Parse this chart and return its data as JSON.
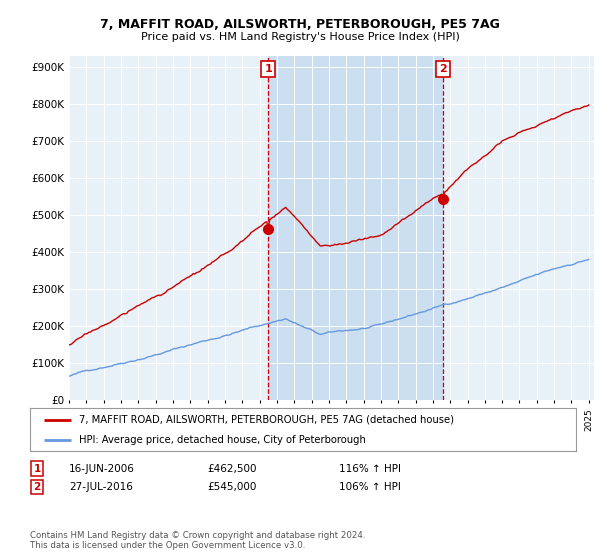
{
  "title": "7, MAFFIT ROAD, AILSWORTH, PETERBOROUGH, PE5 7AG",
  "subtitle": "Price paid vs. HM Land Registry's House Price Index (HPI)",
  "legend_line1": "7, MAFFIT ROAD, AILSWORTH, PETERBOROUGH, PE5 7AG (detached house)",
  "legend_line2": "HPI: Average price, detached house, City of Peterborough",
  "annotation1_date": "16-JUN-2006",
  "annotation1_price": 462500,
  "annotation1_pct": "116% ↑ HPI",
  "annotation2_date": "27-JUL-2016",
  "annotation2_price": 545000,
  "annotation2_pct": "106% ↑ HPI",
  "footer": "Contains HM Land Registry data © Crown copyright and database right 2024.\nThis data is licensed under the Open Government Licence v3.0.",
  "hpi_color": "#6699DD",
  "price_color": "#CC0000",
  "annotation_box_color": "#CC0000",
  "shade_color": "#C8DCEF",
  "background_color": "#E8F0F8",
  "ylim": [
    0,
    930000
  ],
  "yticks": [
    0,
    100000,
    200000,
    300000,
    400000,
    500000,
    600000,
    700000,
    800000,
    900000
  ]
}
